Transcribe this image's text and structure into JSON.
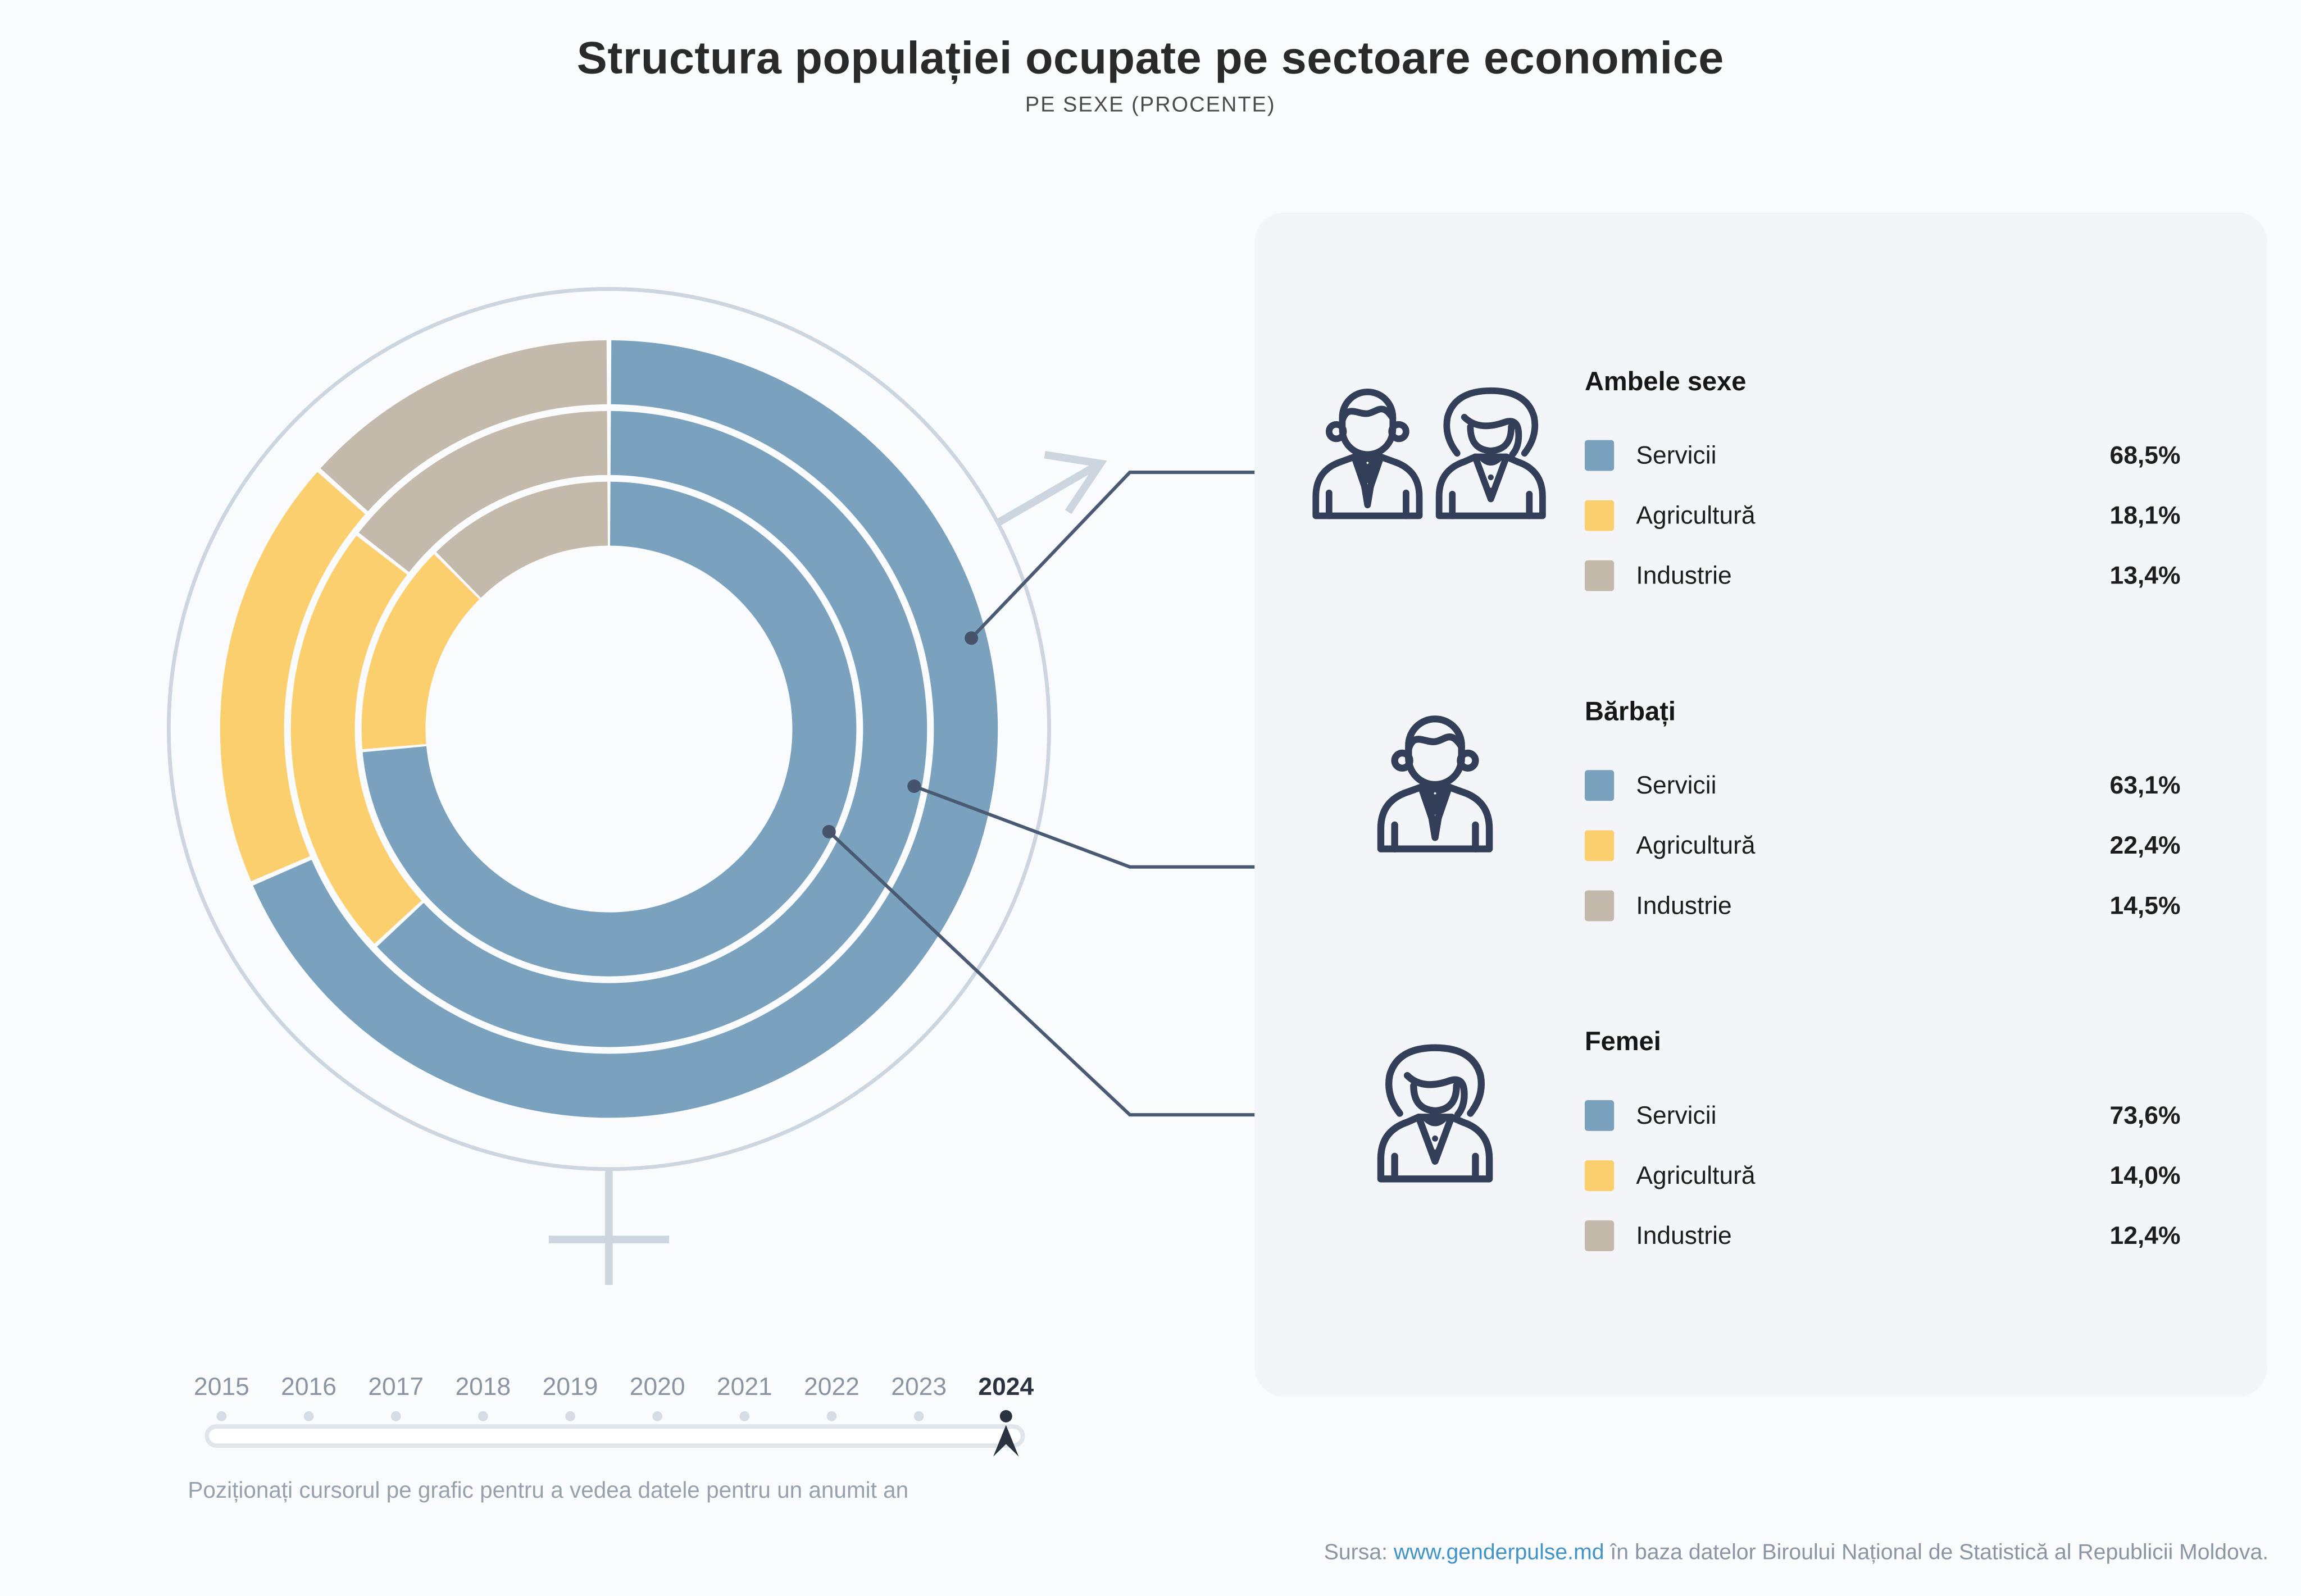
{
  "title": "Structura populației ocupate pe sectoare economice",
  "subtitle": "PE SEXE (PROCENTE)",
  "colors": {
    "servicii": "#7AA2BF",
    "agricultura": "#FCCF6E",
    "industrie": "#C4BAAC",
    "navy": "#333F58",
    "callout": "#4A5A73",
    "symbol_grey": "#CDD5DF",
    "panel_bg": "#F3F5F8",
    "page_bg": "#FAFBFC",
    "link_blue": "#4293C8",
    "year_grey": "#8B95A2",
    "year_selected": "#2C3340"
  },
  "chart_data": {
    "type": "donut-multi-ring",
    "description": "Three concentric donut rings inside a combined male/female gender symbol; values are percent of employed population by economic sector, year 2024.",
    "year": "2024",
    "start_angle_deg": 0,
    "direction": "clockwise",
    "rings": [
      {
        "group": "Ambele sexe",
        "position": "outer",
        "segments": [
          {
            "label": "Servicii",
            "value": 68.5,
            "color_key": "servicii"
          },
          {
            "label": "Agricultură",
            "value": 18.1,
            "color_key": "agricultura"
          },
          {
            "label": "Industrie",
            "value": 13.4,
            "color_key": "industrie"
          }
        ]
      },
      {
        "group": "Bărbați",
        "position": "middle",
        "segments": [
          {
            "label": "Servicii",
            "value": 63.1,
            "color_key": "servicii"
          },
          {
            "label": "Agricultură",
            "value": 22.4,
            "color_key": "agricultura"
          },
          {
            "label": "Industrie",
            "value": 14.5,
            "color_key": "industrie"
          }
        ]
      },
      {
        "group": "Femei",
        "position": "inner",
        "segments": [
          {
            "label": "Servicii",
            "value": 73.6,
            "color_key": "servicii"
          },
          {
            "label": "Agricultură",
            "value": 14.0,
            "color_key": "agricultura"
          },
          {
            "label": "Industrie",
            "value": 12.4,
            "color_key": "industrie"
          }
        ]
      }
    ]
  },
  "legend": {
    "groups": [
      {
        "header": "Ambele sexe",
        "icon": "man-woman-icon",
        "rows": [
          {
            "label": "Servicii",
            "value": "68,5%",
            "color": "servicii"
          },
          {
            "label": "Agricultură",
            "value": "18,1%",
            "color": "agricultura"
          },
          {
            "label": "Industrie",
            "value": "13,4%",
            "color": "industrie"
          }
        ]
      },
      {
        "header": "Bărbați",
        "icon": "man-icon",
        "rows": [
          {
            "label": "Servicii",
            "value": "63,1%",
            "color": "servicii"
          },
          {
            "label": "Agricultură",
            "value": "22,4%",
            "color": "agricultura"
          },
          {
            "label": "Industrie",
            "value": "14,5%",
            "color": "industrie"
          }
        ]
      },
      {
        "header": "Femei",
        "icon": "woman-icon",
        "rows": [
          {
            "label": "Servicii",
            "value": "73,6%",
            "color": "servicii"
          },
          {
            "label": "Agricultură",
            "value": "14,0%",
            "color": "agricultura"
          },
          {
            "label": "Industrie",
            "value": "12,4%",
            "color": "industrie"
          }
        ]
      }
    ]
  },
  "timeline": {
    "years": [
      "2015",
      "2016",
      "2017",
      "2018",
      "2019",
      "2020",
      "2021",
      "2022",
      "2023",
      "2024"
    ],
    "selected_year": "2024",
    "hint": "Poziționați cursorul pe grafic pentru a vedea datele pentru un anumit an"
  },
  "source": {
    "prefix": "Sursa:",
    "link": "www.genderpulse.md",
    "suffix": "în baza datelor Biroului Național de Statistică al Republicii Moldova."
  }
}
